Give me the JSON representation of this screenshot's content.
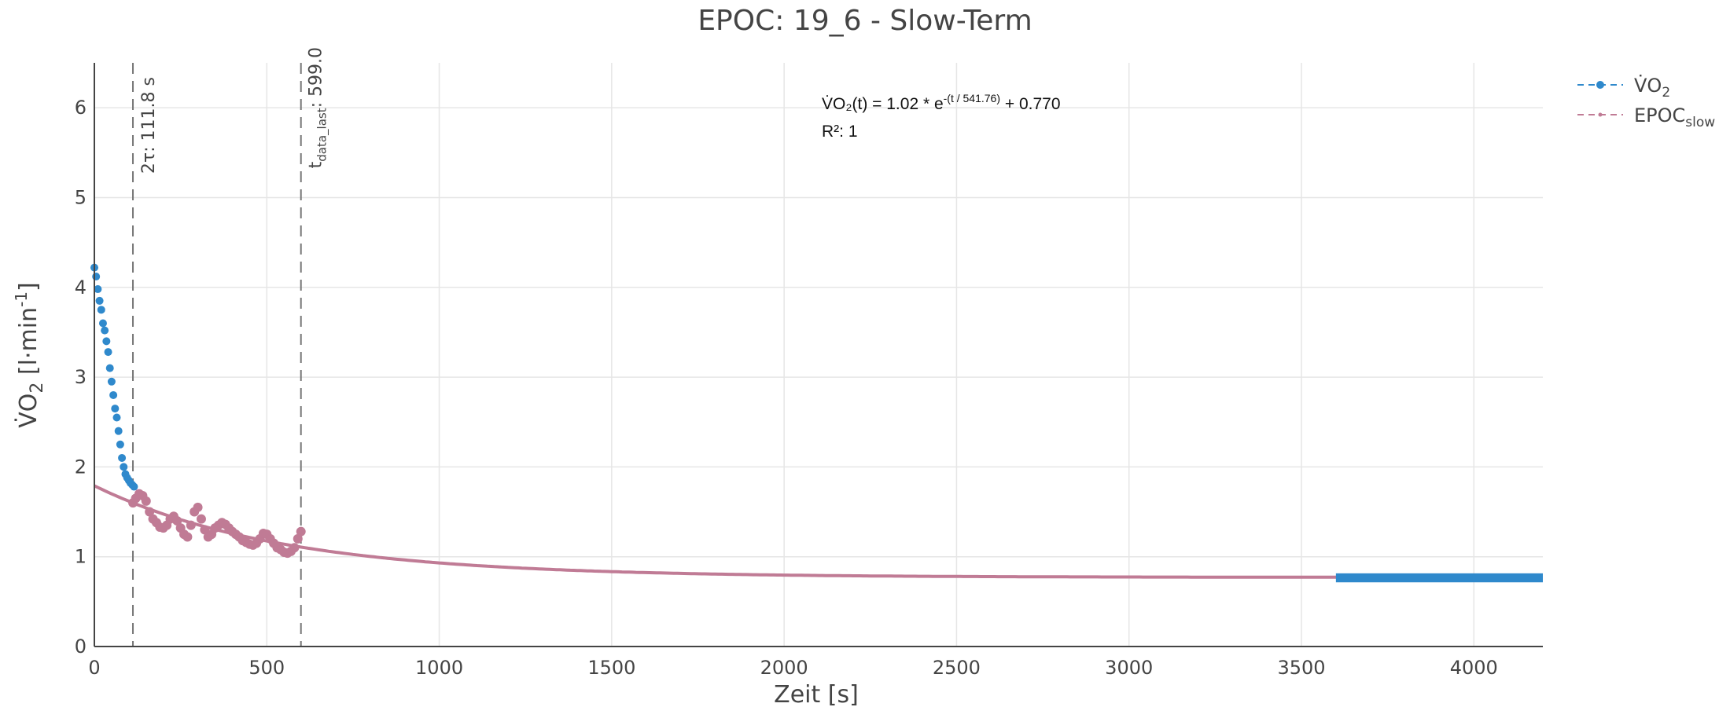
{
  "chart_data": {
    "type": "scatter",
    "title": "EPOC: 19_6 - Slow-Term",
    "xlabel": {
      "main": "Zeit [s]"
    },
    "ylabel": {
      "pre": "V̇O",
      "sub": "2",
      "mid": " [l·min",
      "sup": "-1",
      "post": "]"
    },
    "xlim": [
      0,
      4200
    ],
    "ylim": [
      0,
      6.5
    ],
    "xticks": [
      "0",
      "500",
      "1000",
      "1500",
      "2000",
      "2500",
      "3000",
      "3500",
      "4000"
    ],
    "yticks": [
      "0",
      "1",
      "2",
      "3",
      "4",
      "5",
      "6"
    ],
    "grid": true,
    "legend_position": "top-right",
    "legend": [
      {
        "pre": "V̇O",
        "sub": "2",
        "color": "#2f89cc"
      },
      {
        "pre": "EPOC",
        "sub": "slow",
        "color": "#c07b95"
      }
    ],
    "vlines": [
      {
        "x": 111.8,
        "label": "2τ: 111.8 s"
      },
      {
        "x": 599.0,
        "label_pre": "t",
        "label_sub": "data_last",
        "label_post": ": 599.0"
      }
    ],
    "annotation": {
      "eq_pre": "V̇O₂(t) = 1.02 * e",
      "eq_sup": "-(t / 541.76)",
      "eq_post": " + 0.770",
      "r2": "R²: 1"
    },
    "fit": {
      "A": 1.02,
      "tau": 541.76,
      "c": 0.77,
      "x_range": [
        0,
        4200
      ]
    },
    "series": [
      {
        "name_pre": "V̇O",
        "name_sub": "2",
        "color": "#2f89cc",
        "points": [
          [
            0,
            4.22
          ],
          [
            5,
            4.12
          ],
          [
            10,
            3.98
          ],
          [
            15,
            3.85
          ],
          [
            20,
            3.75
          ],
          [
            25,
            3.6
          ],
          [
            30,
            3.52
          ],
          [
            35,
            3.4
          ],
          [
            40,
            3.28
          ],
          [
            45,
            3.1
          ],
          [
            50,
            2.95
          ],
          [
            55,
            2.8
          ],
          [
            60,
            2.65
          ],
          [
            65,
            2.55
          ],
          [
            70,
            2.4
          ],
          [
            75,
            2.25
          ],
          [
            80,
            2.1
          ],
          [
            85,
            2.0
          ],
          [
            90,
            1.92
          ],
          [
            95,
            1.88
          ],
          [
            100,
            1.85
          ],
          [
            105,
            1.82
          ],
          [
            110,
            1.8
          ],
          [
            115,
            1.78
          ]
        ],
        "tail": {
          "x_start": 3600,
          "x_end": 4200,
          "y_low": 0.75,
          "y_high": 0.78
        }
      },
      {
        "name_pre": "EPOC",
        "name_sub": "slow",
        "color": "#c07b95",
        "points": [
          [
            112,
            1.6
          ],
          [
            120,
            1.65
          ],
          [
            130,
            1.7
          ],
          [
            140,
            1.68
          ],
          [
            150,
            1.62
          ],
          [
            160,
            1.5
          ],
          [
            170,
            1.42
          ],
          [
            180,
            1.38
          ],
          [
            190,
            1.33
          ],
          [
            200,
            1.32
          ],
          [
            210,
            1.35
          ],
          [
            220,
            1.42
          ],
          [
            230,
            1.45
          ],
          [
            240,
            1.4
          ],
          [
            250,
            1.32
          ],
          [
            260,
            1.25
          ],
          [
            270,
            1.22
          ],
          [
            280,
            1.35
          ],
          [
            290,
            1.5
          ],
          [
            300,
            1.55
          ],
          [
            310,
            1.42
          ],
          [
            320,
            1.3
          ],
          [
            330,
            1.22
          ],
          [
            340,
            1.25
          ],
          [
            350,
            1.32
          ],
          [
            360,
            1.35
          ],
          [
            370,
            1.38
          ],
          [
            380,
            1.36
          ],
          [
            390,
            1.32
          ],
          [
            400,
            1.28
          ],
          [
            410,
            1.25
          ],
          [
            420,
            1.22
          ],
          [
            430,
            1.18
          ],
          [
            440,
            1.16
          ],
          [
            450,
            1.14
          ],
          [
            460,
            1.13
          ],
          [
            470,
            1.15
          ],
          [
            480,
            1.2
          ],
          [
            490,
            1.26
          ],
          [
            500,
            1.25
          ],
          [
            510,
            1.2
          ],
          [
            520,
            1.15
          ],
          [
            530,
            1.1
          ],
          [
            540,
            1.08
          ],
          [
            550,
            1.05
          ],
          [
            560,
            1.04
          ],
          [
            570,
            1.06
          ],
          [
            580,
            1.1
          ],
          [
            590,
            1.2
          ],
          [
            599,
            1.28
          ]
        ]
      }
    ]
  }
}
